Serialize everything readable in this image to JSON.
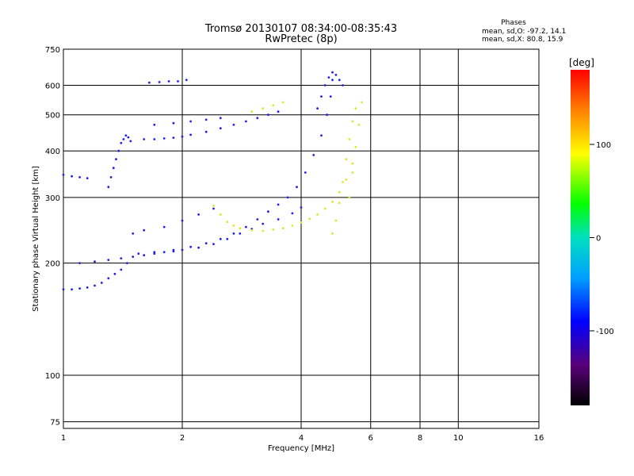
{
  "chart_data": {
    "type": "scatter",
    "title": "Tromsø 20130107 08:34:00-08:35:43",
    "subtitle": "RwPretec (8p)",
    "xlabel": "Frequency [MHz]",
    "ylabel": "Stationary phase Virtual Height [km]",
    "xscale": "log",
    "yscale": "log",
    "xlim": [
      1,
      16
    ],
    "ylim": [
      72,
      750
    ],
    "grid": true,
    "x_ticks": [
      1,
      2,
      4,
      6,
      8,
      10,
      16
    ],
    "y_ticks": [
      75,
      100,
      200,
      300,
      400,
      500,
      600,
      750
    ],
    "stats": {
      "heading": "Phases",
      "line_o": "mean, sd,O: -97.2, 14.1",
      "line_x": "mean, sd,X:  80.8, 15.9"
    },
    "colorbar": {
      "label": "[deg]",
      "range": [
        -180,
        180
      ],
      "ticks": [
        100,
        0,
        -100
      ]
    },
    "series": [
      {
        "phase": -97,
        "color": "#2020e8",
        "traces": [
          {
            "f": [
              1.0,
              1.05,
              1.1,
              1.15,
              1.2,
              1.25,
              1.3,
              1.35,
              1.4,
              1.45
            ],
            "h": [
              170,
              170,
              171,
              172,
              174,
              177,
              182,
              187,
              192,
              200
            ]
          },
          {
            "f": [
              1.1,
              1.2,
              1.3,
              1.4,
              1.5,
              1.6,
              1.7,
              1.8,
              1.9,
              2.0,
              2.2,
              2.4,
              2.6,
              2.8,
              3.0,
              3.2,
              3.5,
              3.8,
              4.0
            ],
            "h": [
              200,
              202,
              204,
              206,
              208,
              210,
              212,
              214,
              215,
              217,
              220,
              225,
              232,
              240,
              247,
              255,
              262,
              272,
              282
            ]
          },
          {
            "f": [
              1.55,
              1.7,
              1.9,
              2.1,
              2.3,
              2.5,
              2.7,
              2.9,
              3.1,
              3.3,
              3.5,
              3.7,
              3.9,
              4.1,
              4.3,
              4.5,
              4.65,
              4.75,
              4.8
            ],
            "h": [
              212,
              214,
              217,
              221,
              226,
              232,
              240,
              250,
              262,
              275,
              287,
              300,
              320,
              350,
              390,
              440,
              500,
              560,
              620
            ]
          },
          {
            "f": [
              1.6,
              1.7,
              1.8,
              1.9,
              2.0,
              2.1
            ],
            "h": [
              430,
              430,
              432,
              434,
              437,
              442
            ]
          },
          {
            "f": [
              2.3,
              2.5,
              2.7,
              2.9,
              3.1,
              3.3,
              3.5
            ],
            "h": [
              450,
              460,
              470,
              480,
              490,
              500,
              510
            ]
          },
          {
            "f": [
              1.7,
              1.9,
              2.1,
              2.3,
              2.5
            ],
            "h": [
              470,
              475,
              480,
              485,
              490
            ]
          },
          {
            "f": [
              1.0,
              1.05,
              1.1,
              1.15
            ],
            "h": [
              345,
              342,
              340,
              338
            ]
          },
          {
            "f": [
              1.3,
              1.32,
              1.34,
              1.36,
              1.38,
              1.4,
              1.42,
              1.44,
              1.46,
              1.48
            ],
            "h": [
              320,
              340,
              360,
              380,
              400,
              420,
              430,
              440,
              435,
              425
            ]
          },
          {
            "f": [
              1.65,
              1.75,
              1.85,
              1.95,
              2.05
            ],
            "h": [
              610,
              612,
              615,
              615,
              620
            ]
          },
          {
            "f": [
              4.4,
              4.5,
              4.6,
              4.7,
              4.8,
              4.9,
              5.0,
              5.1
            ],
            "h": [
              520,
              560,
              600,
              630,
              650,
              640,
              620,
              600
            ]
          },
          {
            "f": [
              1.5,
              1.6,
              1.8,
              2.0,
              2.2,
              2.4
            ],
            "h": [
              240,
              245,
              250,
              260,
              270,
              280
            ]
          }
        ]
      },
      {
        "phase": 81,
        "color": "#d8e830",
        "traces": [
          {
            "f": [
              2.4,
              2.5,
              2.6,
              2.7,
              2.8,
              3.0,
              3.2,
              3.4,
              3.6,
              3.8,
              4.0,
              4.2,
              4.4,
              4.6,
              4.8,
              5.0,
              5.2,
              5.4
            ],
            "h": [
              285,
              270,
              258,
              252,
              248,
              245,
              244,
              246,
              248,
              252,
              257,
              263,
              270,
              280,
              292,
              310,
              335,
              370
            ]
          },
          {
            "f": [
              4.8,
              4.9,
              5.0,
              5.1,
              5.2,
              5.3,
              5.4,
              5.5
            ],
            "h": [
              240,
              260,
              290,
              330,
              380,
              430,
              480,
              520
            ]
          },
          {
            "f": [
              5.3,
              5.4,
              5.5,
              5.6,
              5.7
            ],
            "h": [
              300,
              350,
              410,
              470,
              540
            ]
          },
          {
            "f": [
              3.0,
              3.2,
              3.4,
              3.6
            ],
            "h": [
              510,
              520,
              530,
              540
            ]
          }
        ]
      }
    ]
  }
}
